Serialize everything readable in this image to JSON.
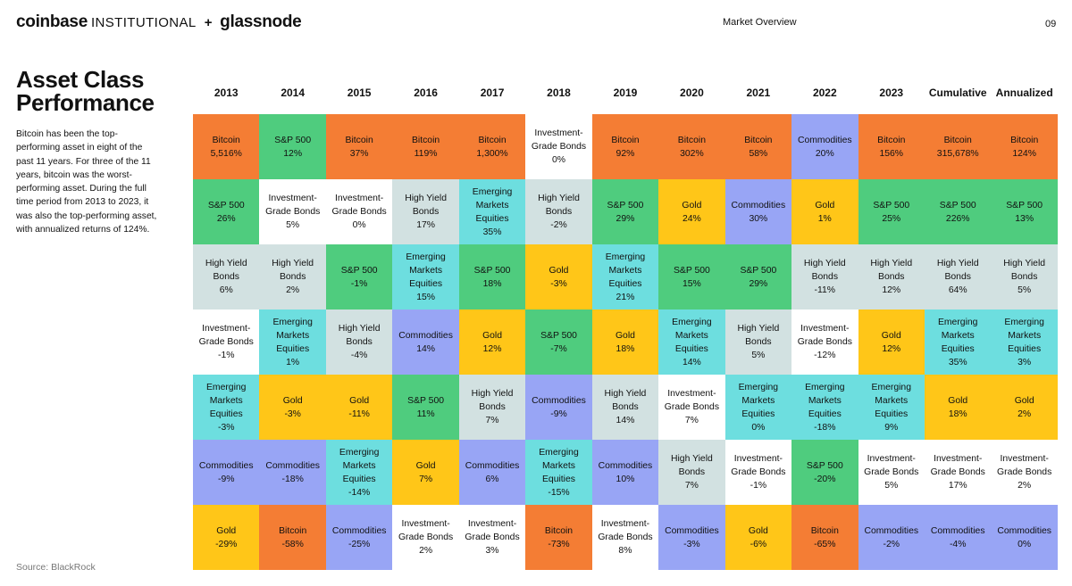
{
  "header": {
    "brand_main": "coinbase",
    "brand_inst": "INSTITUTIONAL",
    "plus": "+",
    "brand_partner": "glassnode",
    "section": "Market Overview",
    "page": "09"
  },
  "title": {
    "line1": "Asset Class",
    "line2": "Performance"
  },
  "description": "Bitcoin has been the top-performing asset in eight of the past 11 years. For three of the 11 years, bitcoin was the worst-performing asset. During the full time period from 2013 to 2023, it was also the top-performing asset, with annualized returns of 124%.",
  "source": "Source: BlackRock",
  "colors": {
    "Bitcoin": "#F47D34",
    "S&P 500": "#4FCC7E",
    "High Yield Bonds": "#D2E1E1",
    "Investment-Grade Bonds": "#FFFFFF",
    "Emerging Markets Equities": "#6DDEDF",
    "Commodities": "#98A5F5",
    "Gold": "#FFC618"
  },
  "chart_data": {
    "type": "table",
    "columns": [
      "2013",
      "2014",
      "2015",
      "2016",
      "2017",
      "2018",
      "2019",
      "2020",
      "2021",
      "2022",
      "2023",
      "Cumulative",
      "Annualized"
    ],
    "rows_ranked_best_to_worst": [
      [
        {
          "asset": "Bitcoin",
          "label": "Bitcoin",
          "value": "5,516%"
        },
        {
          "asset": "S&P 500",
          "label": "S&P 500",
          "value": "12%"
        },
        {
          "asset": "Bitcoin",
          "label": "Bitcoin",
          "value": "37%"
        },
        {
          "asset": "Bitcoin",
          "label": "Bitcoin",
          "value": "119%"
        },
        {
          "asset": "Bitcoin",
          "label": "Bitcoin",
          "value": "1,300%"
        },
        {
          "asset": "Investment-Grade Bonds",
          "label": "Investment-\nGrade Bonds",
          "value": "0%"
        },
        {
          "asset": "Bitcoin",
          "label": "Bitcoin",
          "value": "92%"
        },
        {
          "asset": "Bitcoin",
          "label": "Bitcoin",
          "value": "302%"
        },
        {
          "asset": "Bitcoin",
          "label": "Bitcoin",
          "value": "58%"
        },
        {
          "asset": "Commodities",
          "label": "Commodities",
          "value": "20%"
        },
        {
          "asset": "Bitcoin",
          "label": "Bitcoin",
          "value": "156%"
        },
        {
          "asset": "Bitcoin",
          "label": "Bitcoin",
          "value": "315,678%"
        },
        {
          "asset": "Bitcoin",
          "label": "Bitcoin",
          "value": "124%"
        }
      ],
      [
        {
          "asset": "S&P 500",
          "label": "S&P 500",
          "value": "26%"
        },
        {
          "asset": "Investment-Grade Bonds",
          "label": "Investment-\nGrade Bonds",
          "value": "5%"
        },
        {
          "asset": "Investment-Grade Bonds",
          "label": "Investment-\nGrade Bonds",
          "value": "0%"
        },
        {
          "asset": "High Yield Bonds",
          "label": "High Yield\nBonds",
          "value": "17%"
        },
        {
          "asset": "Emerging Markets Equities",
          "label": "Emerging\nMarkets\nEquities",
          "value": "35%"
        },
        {
          "asset": "High Yield Bonds",
          "label": "High Yield\nBonds",
          "value": "-2%"
        },
        {
          "asset": "S&P 500",
          "label": "S&P 500",
          "value": "29%"
        },
        {
          "asset": "Gold",
          "label": "Gold",
          "value": "24%"
        },
        {
          "asset": "Commodities",
          "label": "Commodities",
          "value": "30%"
        },
        {
          "asset": "Gold",
          "label": "Gold",
          "value": "1%"
        },
        {
          "asset": "S&P 500",
          "label": "S&P 500",
          "value": "25%"
        },
        {
          "asset": "S&P 500",
          "label": "S&P 500",
          "value": "226%"
        },
        {
          "asset": "S&P 500",
          "label": "S&P 500",
          "value": "13%"
        }
      ],
      [
        {
          "asset": "High Yield Bonds",
          "label": "High Yield\nBonds",
          "value": "6%"
        },
        {
          "asset": "High Yield Bonds",
          "label": "High Yield\nBonds",
          "value": "2%"
        },
        {
          "asset": "S&P 500",
          "label": "S&P 500",
          "value": "-1%"
        },
        {
          "asset": "Emerging Markets Equities",
          "label": "Emerging\nMarkets\nEquities",
          "value": "15%"
        },
        {
          "asset": "S&P 500",
          "label": "S&P 500",
          "value": "18%"
        },
        {
          "asset": "Gold",
          "label": "Gold",
          "value": "-3%"
        },
        {
          "asset": "Emerging Markets Equities",
          "label": "Emerging\nMarkets\nEquities",
          "value": "21%"
        },
        {
          "asset": "S&P 500",
          "label": "S&P 500",
          "value": "15%"
        },
        {
          "asset": "S&P 500",
          "label": "S&P 500",
          "value": "29%"
        },
        {
          "asset": "High Yield Bonds",
          "label": "High Yield\nBonds",
          "value": "-11%"
        },
        {
          "asset": "High Yield Bonds",
          "label": "High Yield\nBonds",
          "value": "12%"
        },
        {
          "asset": "High Yield Bonds",
          "label": "High Yield\nBonds",
          "value": "64%"
        },
        {
          "asset": "High Yield Bonds",
          "label": "High Yield\nBonds",
          "value": "5%"
        }
      ],
      [
        {
          "asset": "Investment-Grade Bonds",
          "label": "Investment-\nGrade Bonds",
          "value": "-1%"
        },
        {
          "asset": "Emerging Markets Equities",
          "label": "Emerging\nMarkets\nEquities",
          "value": "1%"
        },
        {
          "asset": "High Yield Bonds",
          "label": "High Yield\nBonds",
          "value": "-4%"
        },
        {
          "asset": "Commodities",
          "label": "Commodities",
          "value": "14%"
        },
        {
          "asset": "Gold",
          "label": "Gold",
          "value": "12%"
        },
        {
          "asset": "S&P 500",
          "label": "S&P 500",
          "value": "-7%"
        },
        {
          "asset": "Gold",
          "label": "Gold",
          "value": "18%"
        },
        {
          "asset": "Emerging Markets Equities",
          "label": "Emerging\nMarkets\nEquities",
          "value": "14%"
        },
        {
          "asset": "High Yield Bonds",
          "label": "High Yield\nBonds",
          "value": "5%"
        },
        {
          "asset": "Investment-Grade Bonds",
          "label": "Investment-\nGrade Bonds",
          "value": "-12%"
        },
        {
          "asset": "Gold",
          "label": "Gold",
          "value": "12%"
        },
        {
          "asset": "Emerging Markets Equities",
          "label": "Emerging\nMarkets\nEquities",
          "value": "35%"
        },
        {
          "asset": "Emerging Markets Equities",
          "label": "Emerging\nMarkets\nEquities",
          "value": "3%"
        }
      ],
      [
        {
          "asset": "Emerging Markets Equities",
          "label": "Emerging\nMarkets\nEquities",
          "value": "-3%"
        },
        {
          "asset": "Gold",
          "label": "Gold",
          "value": "-3%"
        },
        {
          "asset": "Gold",
          "label": "Gold",
          "value": "-11%"
        },
        {
          "asset": "S&P 500",
          "label": "S&P 500",
          "value": "11%"
        },
        {
          "asset": "High Yield Bonds",
          "label": "High Yield\nBonds",
          "value": "7%"
        },
        {
          "asset": "Commodities",
          "label": "Commodities",
          "value": "-9%"
        },
        {
          "asset": "High Yield Bonds",
          "label": "High Yield\nBonds",
          "value": "14%"
        },
        {
          "asset": "Investment-Grade Bonds",
          "label": "Investment-\nGrade Bonds",
          "value": "7%"
        },
        {
          "asset": "Emerging Markets Equities",
          "label": "Emerging\nMarkets\nEquities",
          "value": "0%"
        },
        {
          "asset": "Emerging Markets Equities",
          "label": "Emerging\nMarkets\nEquities",
          "value": "-18%"
        },
        {
          "asset": "Emerging Markets Equities",
          "label": "Emerging\nMarkets\nEquities",
          "value": "9%"
        },
        {
          "asset": "Gold",
          "label": "Gold",
          "value": "18%"
        },
        {
          "asset": "Gold",
          "label": "Gold",
          "value": "2%"
        }
      ],
      [
        {
          "asset": "Commodities",
          "label": "Commodities",
          "value": "-9%"
        },
        {
          "asset": "Commodities",
          "label": "Commodities",
          "value": "-18%"
        },
        {
          "asset": "Emerging Markets Equities",
          "label": "Emerging\nMarkets\nEquities",
          "value": "-14%"
        },
        {
          "asset": "Gold",
          "label": "Gold",
          "value": "7%"
        },
        {
          "asset": "Commodities",
          "label": "Commodities",
          "value": "6%"
        },
        {
          "asset": "Emerging Markets Equities",
          "label": "Emerging\nMarkets\nEquities",
          "value": "-15%"
        },
        {
          "asset": "Commodities",
          "label": "Commodities",
          "value": "10%"
        },
        {
          "asset": "High Yield Bonds",
          "label": "High Yield\nBonds",
          "value": "7%"
        },
        {
          "asset": "Investment-Grade Bonds",
          "label": "Investment-\nGrade Bonds",
          "value": "-1%"
        },
        {
          "asset": "S&P 500",
          "label": "S&P 500",
          "value": "-20%"
        },
        {
          "asset": "Investment-Grade Bonds",
          "label": "Investment-\nGrade Bonds",
          "value": "5%"
        },
        {
          "asset": "Investment-Grade Bonds",
          "label": "Investment-\nGrade Bonds",
          "value": "17%"
        },
        {
          "asset": "Investment-Grade Bonds",
          "label": "Investment-\nGrade Bonds",
          "value": "2%"
        }
      ],
      [
        {
          "asset": "Gold",
          "label": "Gold",
          "value": "-29%"
        },
        {
          "asset": "Bitcoin",
          "label": "Bitcoin",
          "value": "-58%"
        },
        {
          "asset": "Commodities",
          "label": "Commodities",
          "value": "-25%"
        },
        {
          "asset": "Investment-Grade Bonds",
          "label": "Investment-\nGrade Bonds",
          "value": "2%"
        },
        {
          "asset": "Investment-Grade Bonds",
          "label": "Investment-\nGrade Bonds",
          "value": "3%"
        },
        {
          "asset": "Bitcoin",
          "label": "Bitcoin",
          "value": "-73%"
        },
        {
          "asset": "Investment-Grade Bonds",
          "label": "Investment-\nGrade Bonds",
          "value": "8%"
        },
        {
          "asset": "Commodities",
          "label": "Commodities",
          "value": "-3%"
        },
        {
          "asset": "Gold",
          "label": "Gold",
          "value": "-6%"
        },
        {
          "asset": "Bitcoin",
          "label": "Bitcoin",
          "value": "-65%"
        },
        {
          "asset": "Commodities",
          "label": "Commodities",
          "value": "-2%"
        },
        {
          "asset": "Commodities",
          "label": "Commodities",
          "value": "-4%"
        },
        {
          "asset": "Commodities",
          "label": "Commodities",
          "value": "0%"
        }
      ]
    ]
  }
}
